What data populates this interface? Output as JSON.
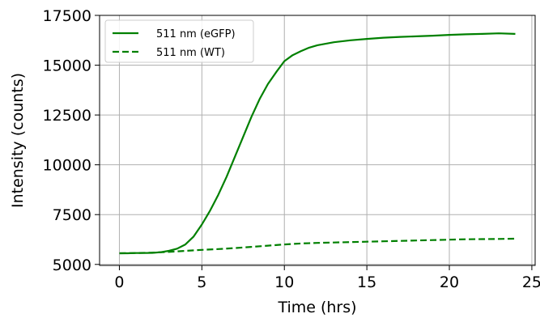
{
  "chart_data": {
    "type": "line",
    "title": "",
    "xlabel": "Time (hrs)",
    "ylabel": "Intensity (counts)",
    "xlim": [
      -1.2,
      25.2
    ],
    "ylim": [
      4950,
      17500
    ],
    "xticks": [
      0,
      5,
      10,
      15,
      20,
      25
    ],
    "yticks": [
      5000,
      7500,
      10000,
      12500,
      15000,
      17500
    ],
    "xtick_labels": [
      "0",
      "5",
      "10",
      "15",
      "20",
      "25"
    ],
    "ytick_labels": [
      "5000",
      "7500",
      "10000",
      "12500",
      "15000",
      "17500"
    ],
    "grid": true,
    "legend_position": "top-left",
    "series": [
      {
        "name": "511  nm (eGFP)",
        "color": "#008000",
        "linestyle": "solid",
        "x": [
          0,
          0.5,
          1,
          1.5,
          2,
          2.5,
          3,
          3.5,
          4,
          4.5,
          5,
          5.5,
          6,
          6.5,
          7,
          7.5,
          8,
          8.5,
          9,
          9.5,
          10,
          10.5,
          11,
          11.5,
          12,
          13,
          14,
          15,
          16,
          17,
          18,
          19,
          20,
          21,
          22,
          23,
          24
        ],
        "y": [
          5560,
          5560,
          5570,
          5570,
          5580,
          5610,
          5680,
          5790,
          6000,
          6400,
          7000,
          7700,
          8500,
          9400,
          10400,
          11400,
          12400,
          13300,
          14050,
          14650,
          15200,
          15500,
          15700,
          15880,
          16000,
          16150,
          16250,
          16320,
          16380,
          16420,
          16450,
          16480,
          16520,
          16550,
          16570,
          16600,
          16570
        ]
      },
      {
        "name": "511  nm (WT)",
        "color": "#008000",
        "linestyle": "dashed",
        "x": [
          0,
          1,
          2,
          3,
          4,
          5,
          6,
          7,
          8,
          9,
          10,
          11,
          12,
          13,
          14,
          15,
          16,
          17,
          18,
          19,
          20,
          21,
          22,
          23,
          24
        ],
        "y": [
          5560,
          5570,
          5590,
          5630,
          5680,
          5730,
          5770,
          5820,
          5880,
          5940,
          6000,
          6050,
          6080,
          6100,
          6120,
          6140,
          6160,
          6180,
          6200,
          6220,
          6240,
          6260,
          6270,
          6280,
          6290
        ]
      }
    ]
  }
}
